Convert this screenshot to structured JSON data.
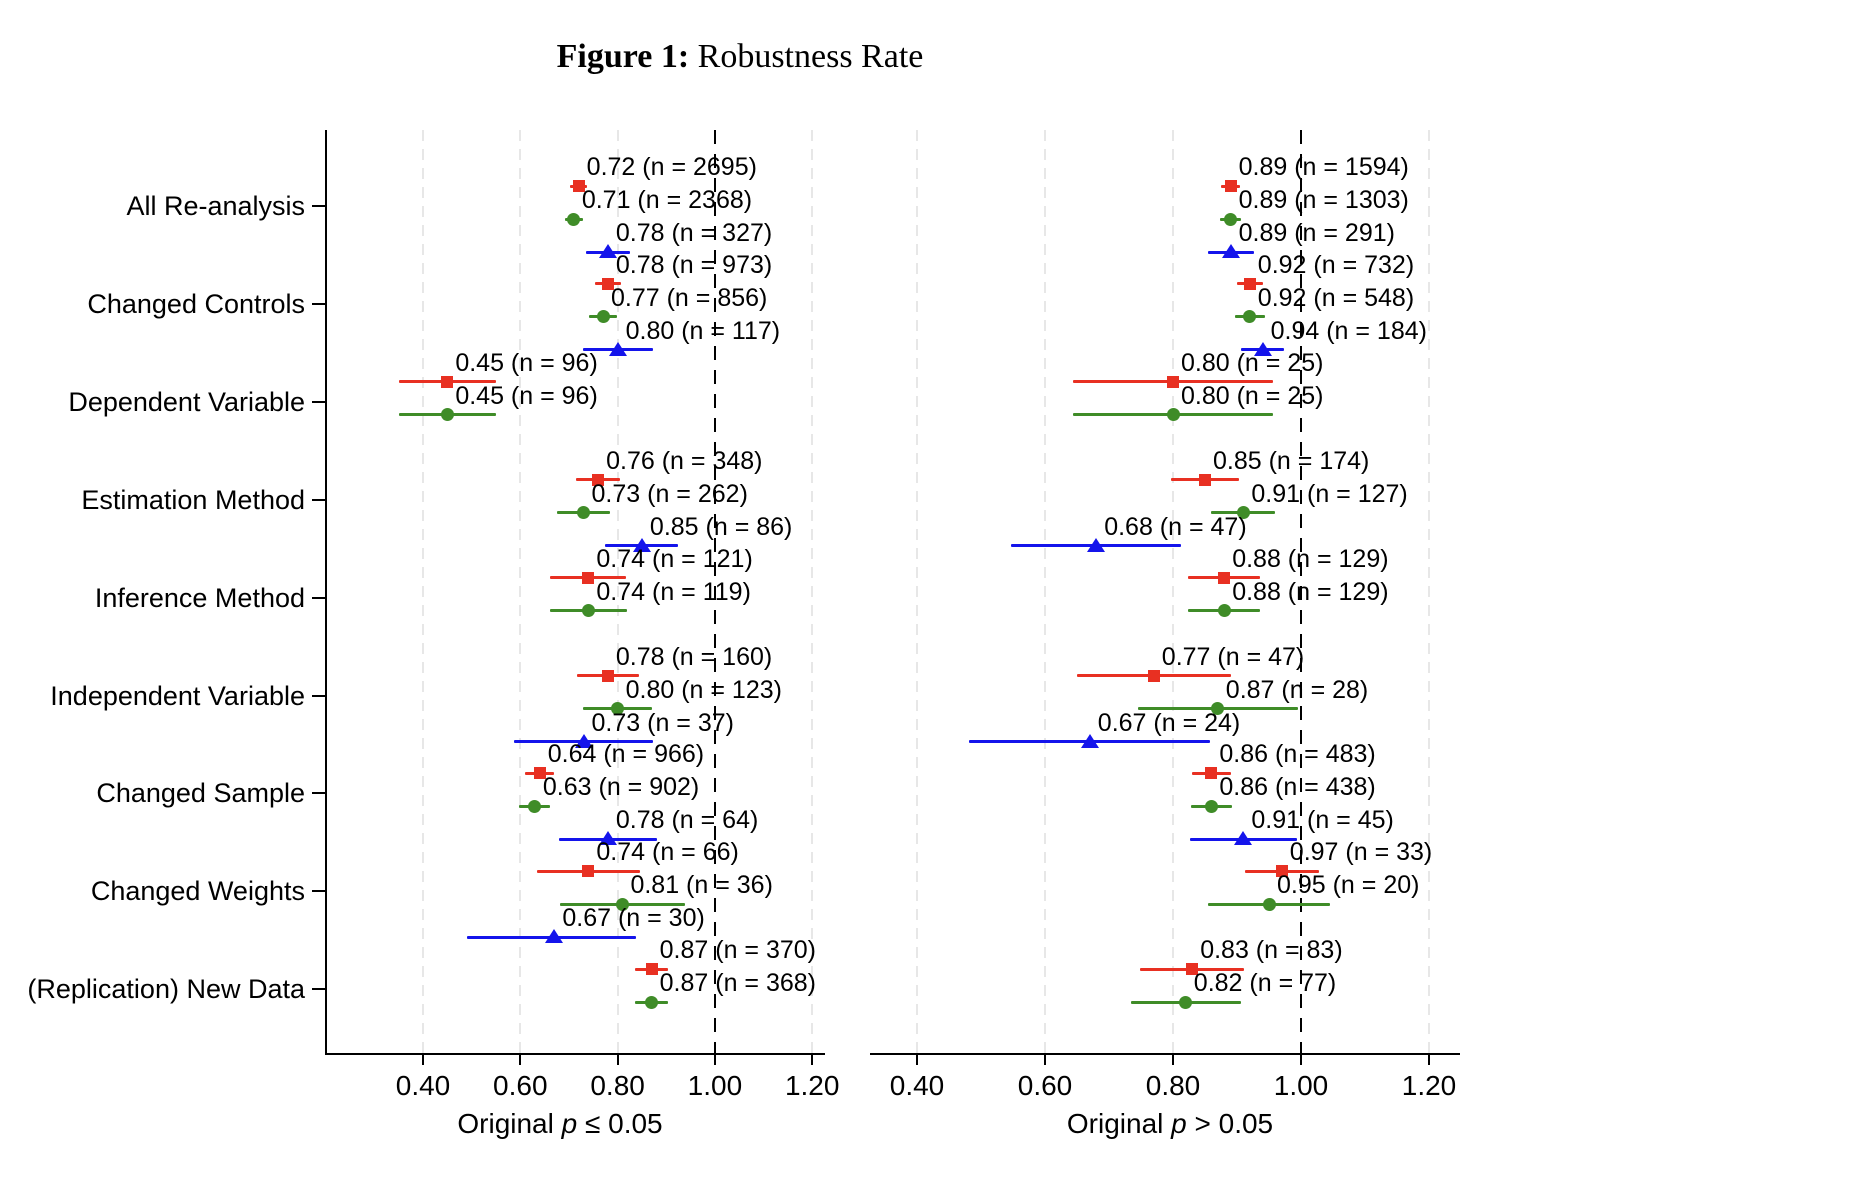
{
  "figure": {
    "title_prefix": "Figure 1:",
    "title_rest": " Robustness Rate"
  },
  "chart_data": {
    "type": "scatter",
    "subtype": "forest-dot-whisker",
    "title": "Figure 1: Robustness Rate",
    "grid": "vertical-dashed",
    "legend": "none",
    "categories": [
      "All Re-analysis",
      "Changed Controls",
      "Dependent Variable",
      "Estimation Method",
      "Inference Method",
      "Independent Variable",
      "Changed Sample",
      "Changed Weights",
      "(Replication) New Data"
    ],
    "series_legend": [
      {
        "key": "red",
        "marker": "square",
        "color": "#e83022"
      },
      {
        "key": "green",
        "marker": "circle",
        "color": "#3f8c28"
      },
      {
        "key": "blue",
        "marker": "triangle",
        "color": "#1414eb"
      }
    ],
    "colors": {
      "red": "#e83022",
      "green": "#3f8c28",
      "blue": "#1414eb",
      "refline": "#000000",
      "gridline": "#e7e7e7"
    },
    "panels": [
      {
        "xlabel": "Original p ≤ 0.05",
        "xlim": [
          0.2,
          1.23
        ],
        "ticks": [
          "0.40",
          "0.60",
          "0.80",
          "1.00",
          "1.20"
        ],
        "tick_values": [
          0.4,
          0.6,
          0.8,
          1.0,
          1.2
        ],
        "refline": 1.0,
        "points": [
          {
            "category": "All Re-analysis",
            "series": "red",
            "value": 0.72,
            "n": 2695,
            "lo": 0.703,
            "hi": 0.737,
            "label": "0.72 (n = 2695)"
          },
          {
            "category": "All Re-analysis",
            "series": "green",
            "value": 0.71,
            "n": 2368,
            "lo": 0.692,
            "hi": 0.728,
            "label": "0.71 (n = 2368)"
          },
          {
            "category": "All Re-analysis",
            "series": "blue",
            "value": 0.78,
            "n": 327,
            "lo": 0.735,
            "hi": 0.825,
            "label": "0.78 (n = 327)"
          },
          {
            "category": "Changed Controls",
            "series": "red",
            "value": 0.78,
            "n": 973,
            "lo": 0.754,
            "hi": 0.806,
            "label": "0.78 (n = 973)"
          },
          {
            "category": "Changed Controls",
            "series": "green",
            "value": 0.77,
            "n": 856,
            "lo": 0.742,
            "hi": 0.798,
            "label": "0.77 (n = 856)"
          },
          {
            "category": "Changed Controls",
            "series": "blue",
            "value": 0.8,
            "n": 117,
            "lo": 0.728,
            "hi": 0.872,
            "label": "0.80 (n = 117)"
          },
          {
            "category": "Dependent Variable",
            "series": "red",
            "value": 0.45,
            "n": 96,
            "lo": 0.35,
            "hi": 0.55,
            "label": "0.45 (n = 96)"
          },
          {
            "category": "Dependent Variable",
            "series": "green",
            "value": 0.45,
            "n": 96,
            "lo": 0.35,
            "hi": 0.55,
            "label": "0.45 (n = 96)"
          },
          {
            "category": "Estimation Method",
            "series": "red",
            "value": 0.76,
            "n": 348,
            "lo": 0.715,
            "hi": 0.805,
            "label": "0.76 (n = 348)"
          },
          {
            "category": "Estimation Method",
            "series": "green",
            "value": 0.73,
            "n": 262,
            "lo": 0.676,
            "hi": 0.784,
            "label": "0.73 (n = 262)"
          },
          {
            "category": "Estimation Method",
            "series": "blue",
            "value": 0.85,
            "n": 86,
            "lo": 0.775,
            "hi": 0.925,
            "label": "0.85 (n = 86)"
          },
          {
            "category": "Inference Method",
            "series": "red",
            "value": 0.74,
            "n": 121,
            "lo": 0.662,
            "hi": 0.818,
            "label": "0.74 (n = 121)"
          },
          {
            "category": "Inference Method",
            "series": "green",
            "value": 0.74,
            "n": 119,
            "lo": 0.661,
            "hi": 0.819,
            "label": "0.74 (n = 119)"
          },
          {
            "category": "Independent Variable",
            "series": "red",
            "value": 0.78,
            "n": 160,
            "lo": 0.716,
            "hi": 0.844,
            "label": "0.78 (n = 160)"
          },
          {
            "category": "Independent Variable",
            "series": "green",
            "value": 0.8,
            "n": 123,
            "lo": 0.729,
            "hi": 0.871,
            "label": "0.80 (n = 123)"
          },
          {
            "category": "Independent Variable",
            "series": "blue",
            "value": 0.73,
            "n": 37,
            "lo": 0.587,
            "hi": 0.873,
            "label": "0.73 (n = 37)"
          },
          {
            "category": "Changed Sample",
            "series": "red",
            "value": 0.64,
            "n": 966,
            "lo": 0.61,
            "hi": 0.67,
            "label": "0.64 (n = 966)"
          },
          {
            "category": "Changed Sample",
            "series": "green",
            "value": 0.63,
            "n": 902,
            "lo": 0.598,
            "hi": 0.662,
            "label": "0.63 (n = 902)"
          },
          {
            "category": "Changed Sample",
            "series": "blue",
            "value": 0.78,
            "n": 64,
            "lo": 0.679,
            "hi": 0.881,
            "label": "0.78 (n = 64)"
          },
          {
            "category": "Changed Weights",
            "series": "red",
            "value": 0.74,
            "n": 66,
            "lo": 0.634,
            "hi": 0.846,
            "label": "0.74 (n = 66)"
          },
          {
            "category": "Changed Weights",
            "series": "green",
            "value": 0.81,
            "n": 36,
            "lo": 0.682,
            "hi": 0.938,
            "label": "0.81 (n = 36)"
          },
          {
            "category": "Changed Weights",
            "series": "blue",
            "value": 0.67,
            "n": 30,
            "lo": 0.49,
            "hi": 0.838,
            "label": "0.67 (n = 30)"
          },
          {
            "category": "(Replication) New Data",
            "series": "red",
            "value": 0.87,
            "n": 370,
            "lo": 0.836,
            "hi": 0.904,
            "label": "0.87 (n = 370)"
          },
          {
            "category": "(Replication) New Data",
            "series": "green",
            "value": 0.87,
            "n": 368,
            "lo": 0.836,
            "hi": 0.904,
            "label": "0.87 (n = 368)"
          }
        ]
      },
      {
        "xlabel": "Original p > 0.05",
        "xlim": [
          0.33,
          1.26
        ],
        "ticks": [
          "0.40",
          "0.60",
          "0.80",
          "1.00",
          "1.20"
        ],
        "tick_values": [
          0.4,
          0.6,
          0.8,
          1.0,
          1.2
        ],
        "refline": 1.0,
        "points": [
          {
            "category": "All Re-analysis",
            "series": "red",
            "value": 0.89,
            "n": 1594,
            "lo": 0.875,
            "hi": 0.905,
            "label": "0.89 (n = 1594)"
          },
          {
            "category": "All Re-analysis",
            "series": "green",
            "value": 0.89,
            "n": 1303,
            "lo": 0.873,
            "hi": 0.907,
            "label": "0.89 (n = 1303)"
          },
          {
            "category": "All Re-analysis",
            "series": "blue",
            "value": 0.89,
            "n": 291,
            "lo": 0.854,
            "hi": 0.926,
            "label": "0.89 (n = 291)"
          },
          {
            "category": "Changed Controls",
            "series": "red",
            "value": 0.92,
            "n": 732,
            "lo": 0.9,
            "hi": 0.94,
            "label": "0.92 (n = 732)"
          },
          {
            "category": "Changed Controls",
            "series": "green",
            "value": 0.92,
            "n": 548,
            "lo": 0.897,
            "hi": 0.943,
            "label": "0.92 (n = 548)"
          },
          {
            "category": "Changed Controls",
            "series": "blue",
            "value": 0.94,
            "n": 184,
            "lo": 0.906,
            "hi": 0.974,
            "label": "0.94 (n = 184)"
          },
          {
            "category": "Dependent Variable",
            "series": "red",
            "value": 0.8,
            "n": 25,
            "lo": 0.643,
            "hi": 0.957,
            "label": "0.80 (n = 25)"
          },
          {
            "category": "Dependent Variable",
            "series": "green",
            "value": 0.8,
            "n": 25,
            "lo": 0.643,
            "hi": 0.957,
            "label": "0.80 (n = 25)"
          },
          {
            "category": "Estimation Method",
            "series": "red",
            "value": 0.85,
            "n": 174,
            "lo": 0.797,
            "hi": 0.903,
            "label": "0.85 (n = 174)"
          },
          {
            "category": "Estimation Method",
            "series": "green",
            "value": 0.91,
            "n": 127,
            "lo": 0.86,
            "hi": 0.96,
            "label": "0.91 (n = 127)"
          },
          {
            "category": "Estimation Method",
            "series": "blue",
            "value": 0.68,
            "n": 47,
            "lo": 0.547,
            "hi": 0.813,
            "label": "0.68 (n = 47)"
          },
          {
            "category": "Inference Method",
            "series": "red",
            "value": 0.88,
            "n": 129,
            "lo": 0.824,
            "hi": 0.936,
            "label": "0.88 (n = 129)"
          },
          {
            "category": "Inference Method",
            "series": "green",
            "value": 0.88,
            "n": 129,
            "lo": 0.824,
            "hi": 0.936,
            "label": "0.88 (n = 129)"
          },
          {
            "category": "Independent Variable",
            "series": "red",
            "value": 0.77,
            "n": 47,
            "lo": 0.65,
            "hi": 0.89,
            "label": "0.77 (n = 47)"
          },
          {
            "category": "Independent Variable",
            "series": "green",
            "value": 0.87,
            "n": 28,
            "lo": 0.745,
            "hi": 0.995,
            "label": "0.87 (n = 28)"
          },
          {
            "category": "Independent Variable",
            "series": "blue",
            "value": 0.67,
            "n": 24,
            "lo": 0.482,
            "hi": 0.858,
            "label": "0.67 (n = 24)"
          },
          {
            "category": "Changed Sample",
            "series": "red",
            "value": 0.86,
            "n": 483,
            "lo": 0.829,
            "hi": 0.891,
            "label": "0.86 (n = 483)"
          },
          {
            "category": "Changed Sample",
            "series": "green",
            "value": 0.86,
            "n": 438,
            "lo": 0.828,
            "hi": 0.892,
            "label": "0.86 (n = 438)"
          },
          {
            "category": "Changed Sample",
            "series": "blue",
            "value": 0.91,
            "n": 45,
            "lo": 0.826,
            "hi": 0.994,
            "label": "0.91 (n = 45)"
          },
          {
            "category": "Changed Weights",
            "series": "red",
            "value": 0.97,
            "n": 33,
            "lo": 0.912,
            "hi": 1.028,
            "label": "0.97 (n = 33)"
          },
          {
            "category": "Changed Weights",
            "series": "green",
            "value": 0.95,
            "n": 20,
            "lo": 0.855,
            "hi": 1.045,
            "label": "0.95 (n = 20)"
          },
          {
            "category": "(Replication) New Data",
            "series": "red",
            "value": 0.83,
            "n": 83,
            "lo": 0.749,
            "hi": 0.911,
            "label": "0.83 (n = 83)"
          },
          {
            "category": "(Replication) New Data",
            "series": "green",
            "value": 0.82,
            "n": 77,
            "lo": 0.734,
            "hi": 0.906,
            "label": "0.82 (n = 77)"
          }
        ]
      }
    ]
  }
}
